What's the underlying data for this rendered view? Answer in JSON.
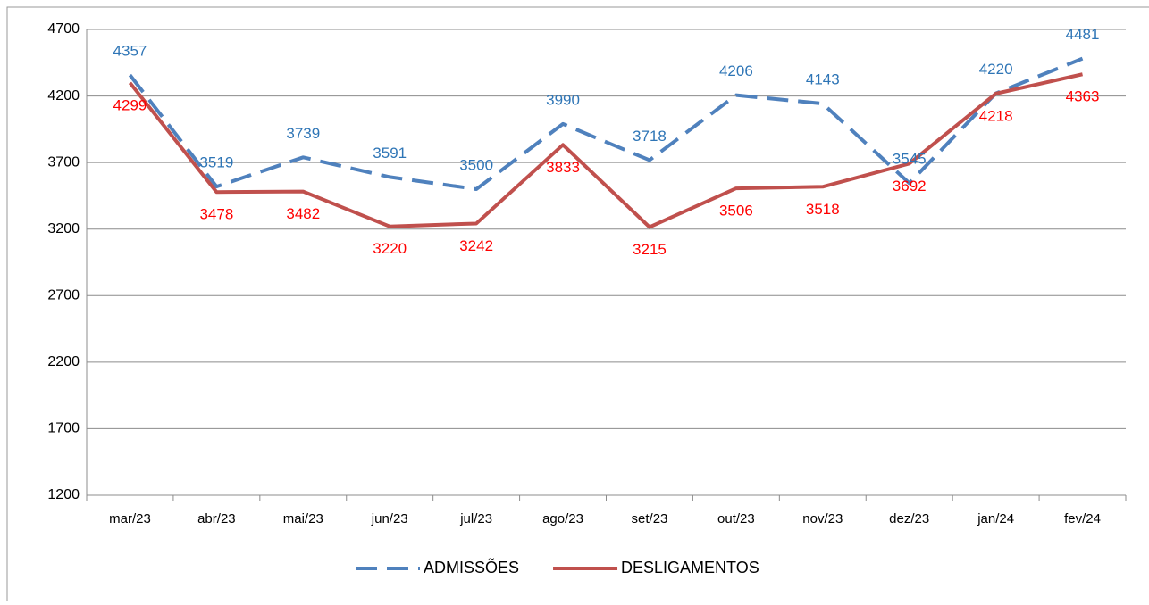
{
  "chart_data": {
    "type": "line",
    "categories": [
      "mar/23",
      "abr/23",
      "mai/23",
      "jun/23",
      "jul/23",
      "ago/23",
      "set/23",
      "out/23",
      "nov/23",
      "dez/23",
      "jan/24",
      "fev/24"
    ],
    "series": [
      {
        "name": "ADMISSÕES",
        "color": "#4f81bd",
        "label_color": "#2e75b6",
        "dashed": true,
        "values": [
          4357,
          3519,
          3739,
          3591,
          3500,
          3990,
          3718,
          4206,
          4143,
          3545,
          4220,
          4481
        ]
      },
      {
        "name": "DESLIGAMENTOS",
        "color": "#c0504d",
        "label_color": "#ff0000",
        "dashed": false,
        "values": [
          4299,
          3478,
          3482,
          3220,
          3242,
          3833,
          3215,
          3506,
          3518,
          3692,
          4218,
          4363
        ]
      }
    ],
    "ylim": [
      1200,
      4700
    ],
    "yticks": [
      1200,
      1700,
      2200,
      2700,
      3200,
      3700,
      4200,
      4700
    ],
    "grid": true,
    "legend": "bottom"
  }
}
